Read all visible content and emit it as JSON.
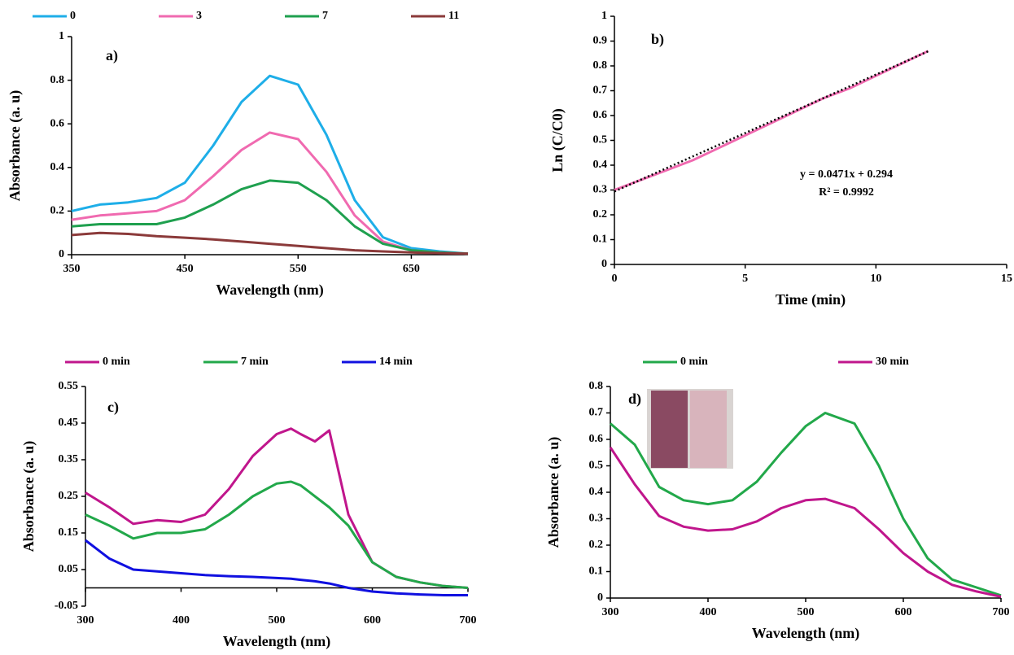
{
  "chart_data": [
    {
      "type": "line",
      "legend": "top",
      "annotation": "a)",
      "xlabel": "Wavelength (nm)",
      "ylabel": "Absorbance (a. u)",
      "xlim": [
        350,
        700
      ],
      "xticks": [
        350,
        450,
        550,
        650
      ],
      "ylim": [
        0,
        1
      ],
      "yticks": [
        0,
        0.2,
        0.4,
        0.6,
        0.8,
        1
      ],
      "x": [
        350,
        375,
        400,
        425,
        450,
        475,
        500,
        525,
        550,
        575,
        600,
        625,
        650,
        675,
        700
      ],
      "series": [
        {
          "name": "0",
          "color": "#1eaee8",
          "values": [
            0.2,
            0.23,
            0.24,
            0.26,
            0.33,
            0.5,
            0.7,
            0.82,
            0.78,
            0.55,
            0.25,
            0.08,
            0.03,
            0.015,
            0.005
          ]
        },
        {
          "name": "3",
          "color": "#f06ab0",
          "values": [
            0.16,
            0.18,
            0.19,
            0.2,
            0.25,
            0.36,
            0.48,
            0.56,
            0.53,
            0.38,
            0.18,
            0.06,
            0.02,
            0.01,
            0.005
          ]
        },
        {
          "name": "7",
          "color": "#1fa04f",
          "values": [
            0.13,
            0.14,
            0.14,
            0.14,
            0.17,
            0.23,
            0.3,
            0.34,
            0.33,
            0.25,
            0.13,
            0.05,
            0.02,
            0.01,
            0.005
          ]
        },
        {
          "name": "11",
          "color": "#8b3a3a",
          "values": [
            0.09,
            0.1,
            0.095,
            0.085,
            0.078,
            0.07,
            0.06,
            0.05,
            0.04,
            0.03,
            0.02,
            0.015,
            0.01,
            0.007,
            0.005
          ]
        }
      ]
    },
    {
      "type": "line",
      "annotation": "b)",
      "xlabel": "Time (min)",
      "ylabel": "Ln (C/C0)",
      "annotations": [
        "y = 0.0471x + 0.294",
        "R² = 0.9992"
      ],
      "xlim": [
        0,
        15
      ],
      "xticks": [
        0,
        5,
        10,
        15
      ],
      "ylim": [
        0,
        1
      ],
      "yticks": [
        0,
        0.1,
        0.2,
        0.3,
        0.4,
        0.5,
        0.6,
        0.7,
        0.8,
        0.9,
        1
      ],
      "series": [
        {
          "color": "#f06ab0",
          "x": [
            0,
            1,
            2,
            3,
            4,
            5,
            6,
            7,
            8,
            9,
            10,
            11,
            12
          ],
          "values": [
            0.3,
            0.34,
            0.38,
            0.42,
            0.47,
            0.52,
            0.57,
            0.62,
            0.67,
            0.71,
            0.76,
            0.81,
            0.86
          ]
        },
        {
          "color": "#000000",
          "style": "dotted",
          "x": [
            0,
            12
          ],
          "values": [
            0.294,
            0.859
          ]
        }
      ]
    },
    {
      "type": "line",
      "legend": "top",
      "annotation": "c)",
      "xlabel": "Wavelength (nm)",
      "ylabel": "Absorbance (a. u)",
      "xlim": [
        300,
        700
      ],
      "xticks": [
        300,
        400,
        500,
        600,
        700
      ],
      "ylim": [
        -0.05,
        0.55
      ],
      "yticks": [
        -0.05,
        0.05,
        0.15,
        0.25,
        0.35,
        0.45,
        0.55
      ],
      "x": [
        300,
        325,
        350,
        375,
        400,
        425,
        450,
        475,
        500,
        515,
        525,
        540,
        555,
        575,
        600,
        625,
        650,
        675,
        700
      ],
      "series": [
        {
          "name": "0 min",
          "color": "#c0168c",
          "values": [
            0.26,
            0.22,
            0.175,
            0.185,
            0.18,
            0.2,
            0.27,
            0.36,
            0.42,
            0.435,
            0.42,
            0.4,
            0.43,
            0.2,
            0.07,
            0.03,
            0.015,
            0.005,
            0.0
          ]
        },
        {
          "name": "7 min",
          "color": "#22a84a",
          "values": [
            0.2,
            0.17,
            0.135,
            0.15,
            0.15,
            0.16,
            0.2,
            0.25,
            0.285,
            0.29,
            0.28,
            0.25,
            0.22,
            0.17,
            0.07,
            0.03,
            0.015,
            0.005,
            0.0
          ]
        },
        {
          "name": "14 min",
          "color": "#1010e0",
          "values": [
            0.13,
            0.08,
            0.05,
            0.045,
            0.04,
            0.035,
            0.032,
            0.03,
            0.027,
            0.025,
            0.022,
            0.018,
            0.012,
            0.0,
            -0.01,
            -0.015,
            -0.018,
            -0.02,
            -0.02
          ]
        }
      ]
    },
    {
      "type": "line",
      "legend": "top",
      "annotation": "d)",
      "xlabel": "Wavelength (nm)",
      "ylabel": "Absorbance (a. u)",
      "xlim": [
        300,
        700
      ],
      "xticks": [
        300,
        400,
        500,
        600,
        700
      ],
      "ylim": [
        0,
        0.8
      ],
      "yticks": [
        0,
        0.1,
        0.2,
        0.3,
        0.4,
        0.5,
        0.6,
        0.7,
        0.8
      ],
      "x": [
        300,
        325,
        350,
        375,
        400,
        425,
        450,
        475,
        500,
        520,
        550,
        575,
        600,
        625,
        650,
        675,
        700
      ],
      "series": [
        {
          "name": "0 min",
          "color": "#22a84a",
          "values": [
            0.66,
            0.58,
            0.42,
            0.37,
            0.355,
            0.37,
            0.44,
            0.55,
            0.65,
            0.7,
            0.66,
            0.5,
            0.3,
            0.15,
            0.07,
            0.04,
            0.01
          ]
        },
        {
          "name": "30 min",
          "color": "#c0168c",
          "values": [
            0.57,
            0.43,
            0.31,
            0.27,
            0.255,
            0.26,
            0.29,
            0.34,
            0.37,
            0.375,
            0.34,
            0.26,
            0.17,
            0.1,
            0.05,
            0.025,
            0.005
          ]
        }
      ]
    }
  ]
}
